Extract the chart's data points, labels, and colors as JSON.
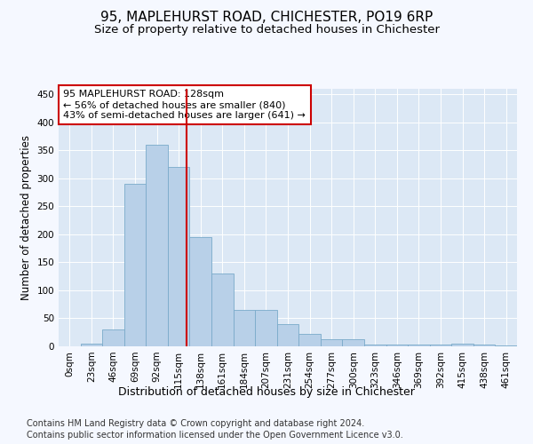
{
  "title": "95, MAPLEHURST ROAD, CHICHESTER, PO19 6RP",
  "subtitle": "Size of property relative to detached houses in Chichester",
  "xlabel": "Distribution of detached houses by size in Chichester",
  "ylabel": "Number of detached properties",
  "bin_labels": [
    "0sqm",
    "23sqm",
    "46sqm",
    "69sqm",
    "92sqm",
    "115sqm",
    "138sqm",
    "161sqm",
    "184sqm",
    "207sqm",
    "231sqm",
    "254sqm",
    "277sqm",
    "300sqm",
    "323sqm",
    "346sqm",
    "369sqm",
    "392sqm",
    "415sqm",
    "438sqm",
    "461sqm"
  ],
  "bar_values": [
    0,
    5,
    30,
    290,
    360,
    320,
    195,
    130,
    65,
    65,
    40,
    22,
    12,
    12,
    3,
    3,
    3,
    3,
    5,
    3,
    2
  ],
  "bar_color": "#b8d0e8",
  "bar_edgecolor": "#7aaaca",
  "vline_x": 5.35,
  "vline_color": "#cc0000",
  "annotation_text": "95 MAPLEHURST ROAD: 128sqm\n← 56% of detached houses are smaller (840)\n43% of semi-detached houses are larger (641) →",
  "annotation_box_edgecolor": "#cc0000",
  "ylim": [
    0,
    460
  ],
  "yticks": [
    0,
    50,
    100,
    150,
    200,
    250,
    300,
    350,
    400,
    450
  ],
  "footer1": "Contains HM Land Registry data © Crown copyright and database right 2024.",
  "footer2": "Contains public sector information licensed under the Open Government Licence v3.0.",
  "fig_bg_color": "#f5f8ff",
  "plot_bg_color": "#dce8f5",
  "title_fontsize": 11,
  "subtitle_fontsize": 9.5,
  "axis_label_fontsize": 8.5,
  "tick_fontsize": 7.5,
  "footer_fontsize": 7
}
